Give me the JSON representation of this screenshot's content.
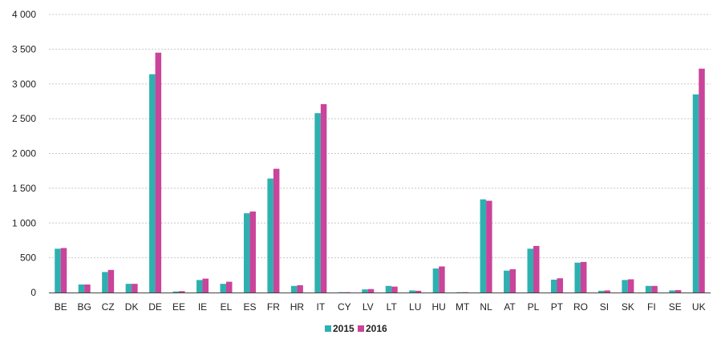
{
  "chart_data": {
    "type": "bar",
    "title": "",
    "xlabel": "",
    "ylabel": "",
    "ylim": [
      0,
      4000
    ],
    "yticks": [
      0,
      500,
      1000,
      1500,
      2000,
      2500,
      3000,
      3500,
      4000
    ],
    "ytick_labels": [
      "0",
      "500",
      "1 000",
      "1 500",
      "2 000",
      "2 500",
      "3 000",
      "3 500",
      "4 000"
    ],
    "grid": true,
    "legend_position": "bottom-center",
    "categories": [
      "BE",
      "BG",
      "CZ",
      "DK",
      "DE",
      "EE",
      "IE",
      "EL",
      "ES",
      "FR",
      "HR",
      "IT",
      "CY",
      "LV",
      "LT",
      "LU",
      "HU",
      "MT",
      "NL",
      "AT",
      "PL",
      "PT",
      "RO",
      "SI",
      "SK",
      "FI",
      "SE",
      "UK"
    ],
    "series": [
      {
        "name": "2015",
        "color": "#2fb0b0",
        "values": [
          630,
          115,
          295,
          125,
          3140,
          15,
          180,
          125,
          1140,
          1640,
          95,
          2580,
          5,
          45,
          95,
          30,
          345,
          5,
          1340,
          315,
          630,
          185,
          430,
          25,
          180,
          95,
          30,
          2850
        ]
      },
      {
        "name": "2016",
        "color": "#c9449a",
        "values": [
          640,
          115,
          325,
          125,
          3450,
          20,
          200,
          155,
          1165,
          1780,
          105,
          2710,
          5,
          50,
          85,
          25,
          375,
          5,
          1320,
          335,
          670,
          205,
          440,
          30,
          190,
          95,
          35,
          3220
        ]
      }
    ]
  }
}
